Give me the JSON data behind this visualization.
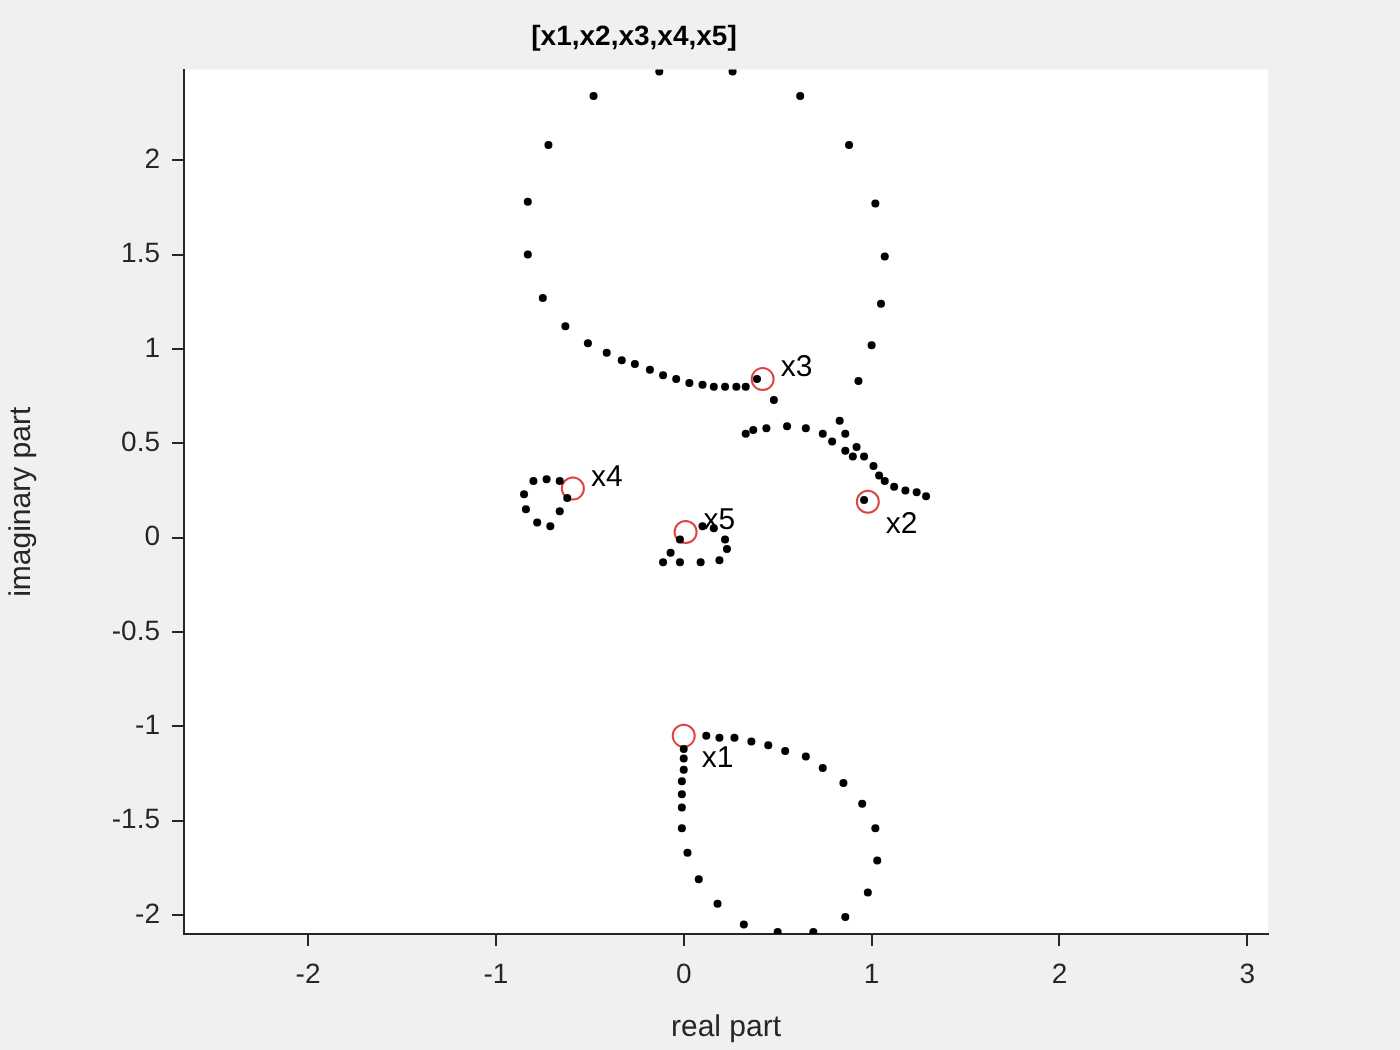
{
  "chart_data": {
    "type": "scatter",
    "title": "[x1,x2,x3,x4,x5]",
    "xlabel": "real part",
    "ylabel": "imaginary part",
    "xlim": [
      -2.66,
      3.11
    ],
    "ylim": [
      -2.1,
      2.48
    ],
    "xticks": [
      -2,
      -1,
      0,
      1,
      2,
      3
    ],
    "yticks": [
      -2,
      -1.5,
      -1,
      -0.5,
      0,
      0.5,
      1,
      1.5,
      2
    ],
    "grid": false,
    "legend": false,
    "marker": "circle",
    "series": [
      {
        "color": "#000000",
        "x": [
          -0.13,
          0.26,
          -0.48,
          0.62,
          -0.72,
          0.88,
          -0.83,
          1.02,
          -0.83,
          1.07,
          -0.75,
          1.05,
          -0.63,
          1.0,
          -0.51,
          -0.41,
          -0.33,
          -0.26,
          -0.18,
          -0.11,
          -0.04,
          0.03,
          0.1,
          0.16,
          0.22,
          0.28,
          0.33,
          0.39,
          0.93,
          0.48,
          0.83,
          0.86,
          0.92,
          0.96,
          1.01,
          1.04,
          1.07,
          1.12,
          1.18,
          1.24,
          1.29,
          0.96,
          0.33,
          0.37,
          0.44,
          0.55,
          0.65,
          0.74,
          0.79,
          0.86,
          0.9,
          -0.8,
          -0.85,
          -0.84,
          -0.78,
          -0.71,
          -0.66,
          -0.62,
          -0.73,
          -0.66,
          -0.02,
          -0.07,
          -0.11,
          -0.02,
          0.09,
          0.19,
          0.23,
          0.22,
          0.16,
          0.1,
          0.12,
          0.19,
          0.27,
          0.36,
          0.45,
          0.54,
          0.65,
          0.74,
          0.85,
          0.95,
          1.02,
          1.03,
          0.98,
          0.86,
          0.69,
          0.5,
          0.32,
          0.18,
          0.08,
          0.02,
          -0.01,
          -0.01,
          -0.01,
          -0.01,
          0.0,
          0.0,
          0.0
        ],
        "values": [
          2.47,
          2.47,
          2.34,
          2.34,
          2.08,
          2.08,
          1.78,
          1.77,
          1.5,
          1.49,
          1.27,
          1.24,
          1.12,
          1.02,
          1.03,
          0.98,
          0.94,
          0.92,
          0.89,
          0.86,
          0.84,
          0.82,
          0.81,
          0.8,
          0.8,
          0.8,
          0.8,
          0.84,
          0.83,
          0.73,
          0.62,
          0.55,
          0.48,
          0.43,
          0.38,
          0.33,
          0.3,
          0.27,
          0.25,
          0.24,
          0.22,
          0.2,
          0.55,
          0.57,
          0.58,
          0.59,
          0.58,
          0.55,
          0.51,
          0.46,
          0.43,
          0.3,
          0.23,
          0.15,
          0.08,
          0.06,
          0.14,
          0.21,
          0.31,
          0.3,
          -0.01,
          -0.08,
          -0.13,
          -0.13,
          -0.13,
          -0.12,
          -0.06,
          -0.01,
          0.05,
          0.06,
          -1.05,
          -1.06,
          -1.06,
          -1.08,
          -1.1,
          -1.13,
          -1.16,
          -1.22,
          -1.3,
          -1.41,
          -1.54,
          -1.71,
          -1.88,
          -2.01,
          -2.09,
          -2.09,
          -2.05,
          -1.94,
          -1.81,
          -1.67,
          -1.54,
          -1.43,
          -1.36,
          -1.29,
          -1.23,
          -1.17,
          -1.12
        ]
      },
      {
        "color": "#e04040",
        "x": [
          0.0,
          0.98,
          0.42,
          -0.59,
          0.01
        ],
        "values": [
          -1.05,
          0.19,
          0.84,
          0.26,
          0.03
        ]
      }
    ],
    "annotations": [
      {
        "text": "x1",
        "x": 0.0,
        "y": -1.05
      },
      {
        "text": "x2",
        "x": 0.98,
        "y": 0.19
      },
      {
        "text": "x3",
        "x": 0.42,
        "y": 0.84
      },
      {
        "text": "x4",
        "x": -0.59,
        "y": 0.26
      },
      {
        "text": "x5",
        "x": 0.01,
        "y": 0.03
      }
    ]
  }
}
